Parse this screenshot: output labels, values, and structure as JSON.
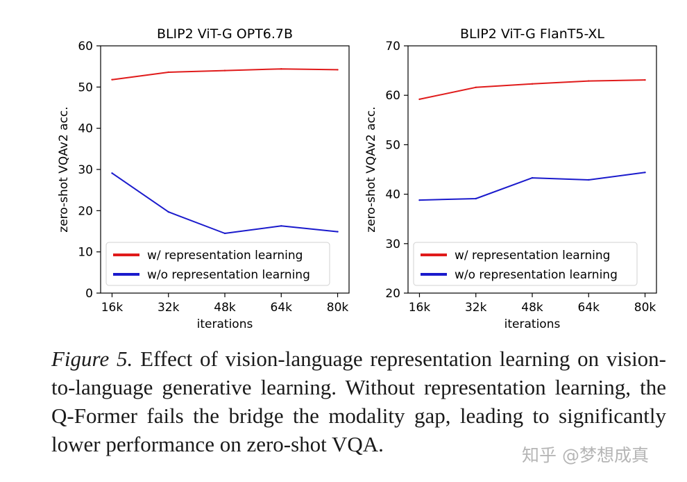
{
  "chart_data": [
    {
      "type": "line",
      "title": "BLIP2 ViT-G OPT6.7B",
      "xlabel": "iterations",
      "ylabel": "zero-shot VQAv2 acc.",
      "categories": [
        "16k",
        "32k",
        "48k",
        "64k",
        "80k"
      ],
      "ylim": [
        0,
        60
      ],
      "yticks": [
        "0",
        "10",
        "20",
        "30",
        "40",
        "50",
        "60"
      ],
      "series": [
        {
          "name": "w/ representation learning",
          "color": "#e01b1b",
          "values": [
            51.8,
            53.6,
            54.0,
            54.4,
            54.2
          ]
        },
        {
          "name": "w/o representation learning",
          "color": "#1a1acc",
          "values": [
            29.1,
            19.7,
            14.5,
            16.3,
            14.9
          ]
        }
      ],
      "legend": "bottom-right",
      "grid": false
    },
    {
      "type": "line",
      "title": "BLIP2 ViT-G FlanT5-XL",
      "xlabel": "iterations",
      "ylabel": "zero-shot VQAv2 acc.",
      "categories": [
        "16k",
        "32k",
        "48k",
        "64k",
        "80k"
      ],
      "ylim": [
        20,
        70
      ],
      "yticks": [
        "20",
        "30",
        "40",
        "50",
        "60",
        "70"
      ],
      "series": [
        {
          "name": "w/ representation learning",
          "color": "#e01b1b",
          "values": [
            59.2,
            61.6,
            62.3,
            62.9,
            63.1
          ]
        },
        {
          "name": "w/o representation learning",
          "color": "#1a1acc",
          "values": [
            38.8,
            39.1,
            43.3,
            42.9,
            44.4
          ]
        }
      ],
      "legend": "bottom-right",
      "grid": false
    }
  ],
  "caption": {
    "label": "Figure 5.",
    "text": "Effect of vision-language representation learning on vision-to-language generative learning. Without representation learning, the Q-Former fails the bridge the modality gap, leading to significantly lower performance on zero-shot VQA."
  },
  "watermark": "知乎 @梦想成真"
}
